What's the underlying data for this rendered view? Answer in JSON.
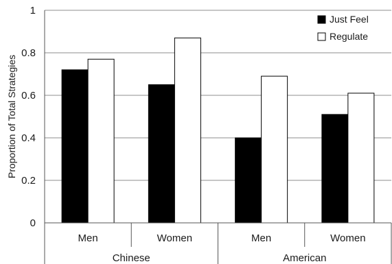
{
  "chart_data": {
    "type": "bar",
    "ylabel": "Proportion of Total Strategies",
    "ylim": [
      0,
      1
    ],
    "yticks": [
      0,
      0.2,
      0.4,
      0.6,
      0.8,
      1
    ],
    "ytick_labels": [
      "0",
      "0.2",
      "0.4",
      "0.6",
      "0.8",
      "1"
    ],
    "grid": true,
    "legend_position": "top-right",
    "groups": [
      {
        "label": "Chinese",
        "categories": [
          "Men",
          "Women"
        ]
      },
      {
        "label": "American",
        "categories": [
          "Men",
          "Women"
        ]
      }
    ],
    "categories": [
      "Men",
      "Women",
      "Men",
      "Women"
    ],
    "series": [
      {
        "name": "Just Feel",
        "color": "#000000",
        "values": [
          0.72,
          0.65,
          0.4,
          0.51
        ]
      },
      {
        "name": "Regulate",
        "color": "#ffffff",
        "values": [
          0.77,
          0.87,
          0.69,
          0.61
        ]
      }
    ]
  }
}
